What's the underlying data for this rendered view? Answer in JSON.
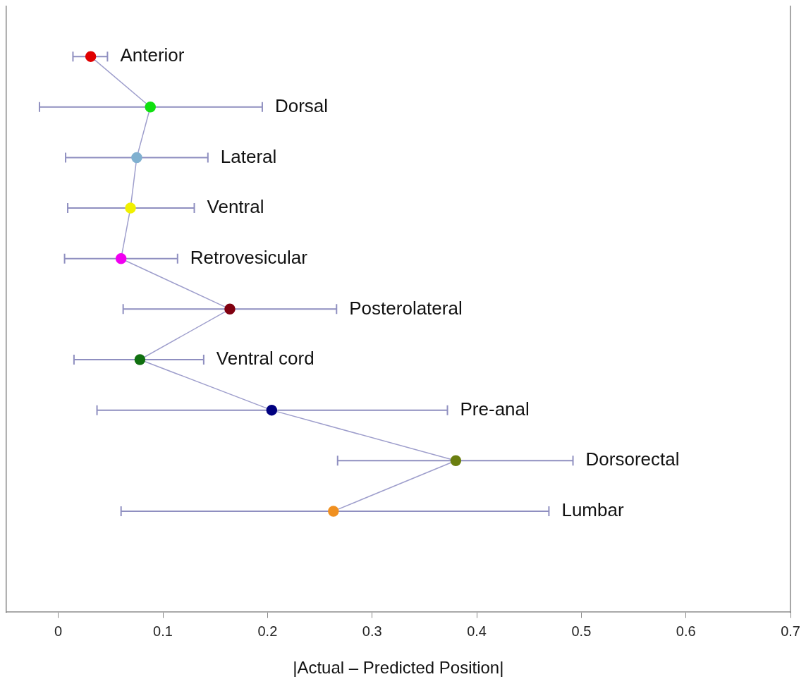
{
  "chart_data": {
    "type": "line",
    "orientation": "horizontal",
    "xlabel": "|Actual – Predicted Position|",
    "categories": [
      "Anterior",
      "Dorsal",
      "Lateral",
      "Ventral",
      "Retrovesicular",
      "Posterolateral",
      "Ventral cord",
      "Pre-anal",
      "Dorsorectal",
      "Lumbar"
    ],
    "values": [
      0.031,
      0.088,
      0.075,
      0.069,
      0.06,
      0.164,
      0.078,
      0.204,
      0.38,
      0.263
    ],
    "errors": [
      [
        0.014,
        0.047
      ],
      [
        -0.018,
        0.195
      ],
      [
        0.007,
        0.143
      ],
      [
        0.009,
        0.13
      ],
      [
        0.006,
        0.114
      ],
      [
        0.062,
        0.266
      ],
      [
        0.015,
        0.139
      ],
      [
        0.037,
        0.372
      ],
      [
        0.267,
        0.492
      ],
      [
        0.06,
        0.469
      ]
    ],
    "color": "#9e9ecc",
    "colors": [
      "#e00000",
      "#10e010",
      "#80b0d0",
      "#f0f000",
      "#f000f0",
      "#800010",
      "#107010",
      "#000080",
      "#6b7f10",
      "#f09020"
    ],
    "marker": "circle",
    "xlim": [
      -0.05,
      0.7
    ],
    "xticks": [
      0,
      0.1,
      0.2,
      0.3,
      0.4,
      0.5,
      0.6,
      0.7
    ],
    "tick_labels": "x",
    "grid": false
  }
}
